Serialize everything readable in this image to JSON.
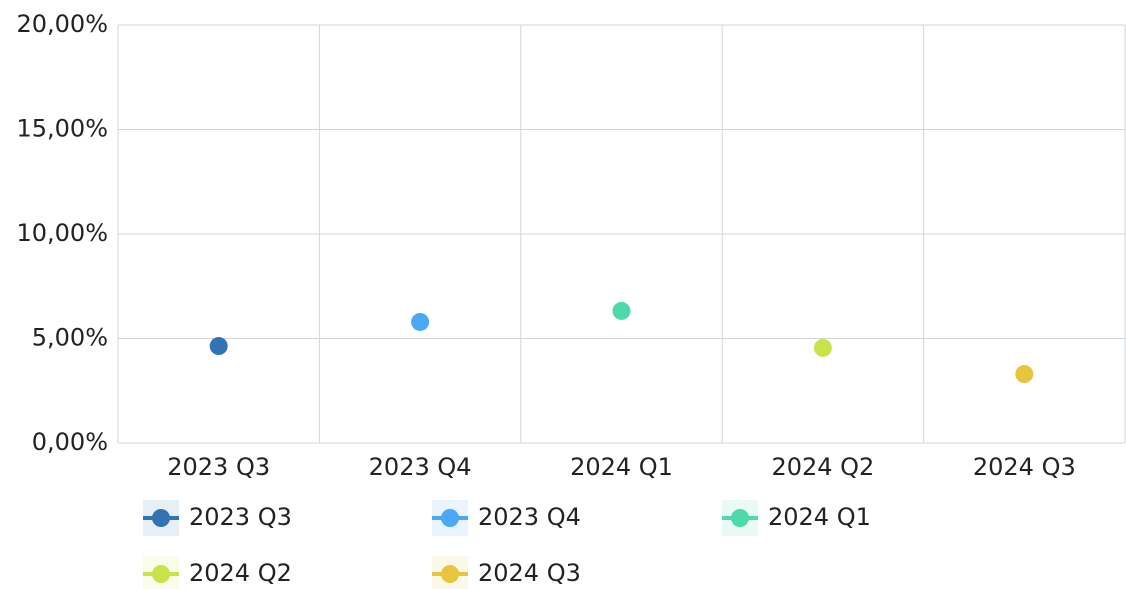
{
  "chart_data": {
    "type": "line",
    "categories": [
      "2023 Q3",
      "2023 Q4",
      "2024 Q1",
      "2024 Q2",
      "2024 Q3"
    ],
    "series": [
      {
        "name": "2023 Q3",
        "color": "#3373b5",
        "values": [
          4.64,
          null,
          null,
          null,
          null
        ]
      },
      {
        "name": "2023 Q4",
        "color": "#4aa8f7",
        "values": [
          null,
          5.79,
          null,
          null,
          null
        ]
      },
      {
        "name": "2024 Q1",
        "color": "#4dd9ab",
        "values": [
          null,
          null,
          6.32,
          null,
          null
        ]
      },
      {
        "name": "2024 Q2",
        "color": "#c6e44a",
        "values": [
          null,
          null,
          null,
          4.55,
          null
        ]
      },
      {
        "name": "2024 Q3",
        "color": "#e8c53d",
        "values": [
          null,
          null,
          null,
          null,
          3.3
        ]
      }
    ],
    "ylim": [
      0,
      20
    ],
    "yticks": [
      {
        "value": 0,
        "label": "0,00%"
      },
      {
        "value": 5,
        "label": "5,00%"
      },
      {
        "value": 10,
        "label": "10,00%"
      },
      {
        "value": 15,
        "label": "15,00%"
      },
      {
        "value": 20,
        "label": "20,00%"
      }
    ],
    "grid": true
  }
}
